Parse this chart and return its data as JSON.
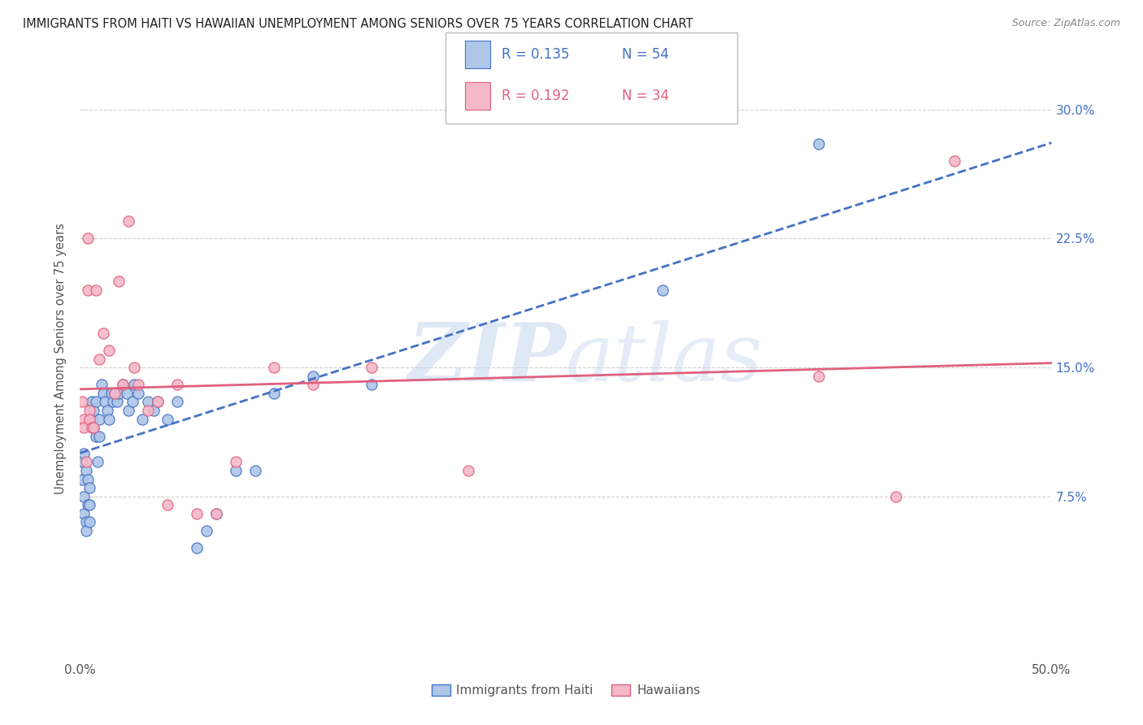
{
  "title": "IMMIGRANTS FROM HAITI VS HAWAIIAN UNEMPLOYMENT AMONG SENIORS OVER 75 YEARS CORRELATION CHART",
  "source": "Source: ZipAtlas.com",
  "ylabel": "Unemployment Among Seniors over 75 years",
  "yticks": [
    "7.5%",
    "15.0%",
    "22.5%",
    "30.0%"
  ],
  "ytick_vals": [
    0.075,
    0.15,
    0.225,
    0.3
  ],
  "xlim": [
    0.0,
    0.5
  ],
  "ylim": [
    -0.02,
    0.33
  ],
  "legend_r1": "R = 0.135",
  "legend_n1": "N = 54",
  "legend_r2": "R = 0.192",
  "legend_n2": "N = 34",
  "color_blue": "#aec6e8",
  "color_pink": "#f4b8c8",
  "color_blue_text": "#4472c4",
  "color_pink_text": "#e06080",
  "watermark_text": "ZIPatlas",
  "blue_scatter_x": [
    0.001,
    0.001,
    0.002,
    0.002,
    0.002,
    0.003,
    0.003,
    0.003,
    0.004,
    0.004,
    0.005,
    0.005,
    0.005,
    0.006,
    0.006,
    0.007,
    0.007,
    0.008,
    0.008,
    0.009,
    0.01,
    0.01,
    0.011,
    0.012,
    0.013,
    0.014,
    0.015,
    0.016,
    0.017,
    0.018,
    0.019,
    0.02,
    0.022,
    0.024,
    0.025,
    0.027,
    0.028,
    0.03,
    0.032,
    0.035,
    0.038,
    0.04,
    0.045,
    0.05,
    0.06,
    0.065,
    0.07,
    0.08,
    0.09,
    0.1,
    0.12,
    0.15,
    0.3,
    0.38
  ],
  "blue_scatter_y": [
    0.095,
    0.085,
    0.1,
    0.075,
    0.065,
    0.09,
    0.06,
    0.055,
    0.085,
    0.07,
    0.08,
    0.07,
    0.06,
    0.12,
    0.13,
    0.125,
    0.115,
    0.13,
    0.11,
    0.095,
    0.12,
    0.11,
    0.14,
    0.135,
    0.13,
    0.125,
    0.12,
    0.135,
    0.13,
    0.135,
    0.13,
    0.135,
    0.14,
    0.135,
    0.125,
    0.13,
    0.14,
    0.135,
    0.12,
    0.13,
    0.125,
    0.13,
    0.12,
    0.13,
    0.045,
    0.055,
    0.065,
    0.09,
    0.09,
    0.135,
    0.145,
    0.14,
    0.195,
    0.28
  ],
  "pink_scatter_x": [
    0.001,
    0.002,
    0.002,
    0.003,
    0.004,
    0.004,
    0.005,
    0.005,
    0.006,
    0.007,
    0.008,
    0.01,
    0.012,
    0.015,
    0.018,
    0.02,
    0.022,
    0.025,
    0.028,
    0.03,
    0.035,
    0.04,
    0.045,
    0.05,
    0.06,
    0.07,
    0.08,
    0.1,
    0.12,
    0.15,
    0.2,
    0.38,
    0.42,
    0.45
  ],
  "pink_scatter_y": [
    0.13,
    0.12,
    0.115,
    0.095,
    0.195,
    0.225,
    0.125,
    0.12,
    0.115,
    0.115,
    0.195,
    0.155,
    0.17,
    0.16,
    0.135,
    0.2,
    0.14,
    0.235,
    0.15,
    0.14,
    0.125,
    0.13,
    0.07,
    0.14,
    0.065,
    0.065,
    0.095,
    0.15,
    0.14,
    0.15,
    0.09,
    0.145,
    0.075,
    0.27
  ]
}
